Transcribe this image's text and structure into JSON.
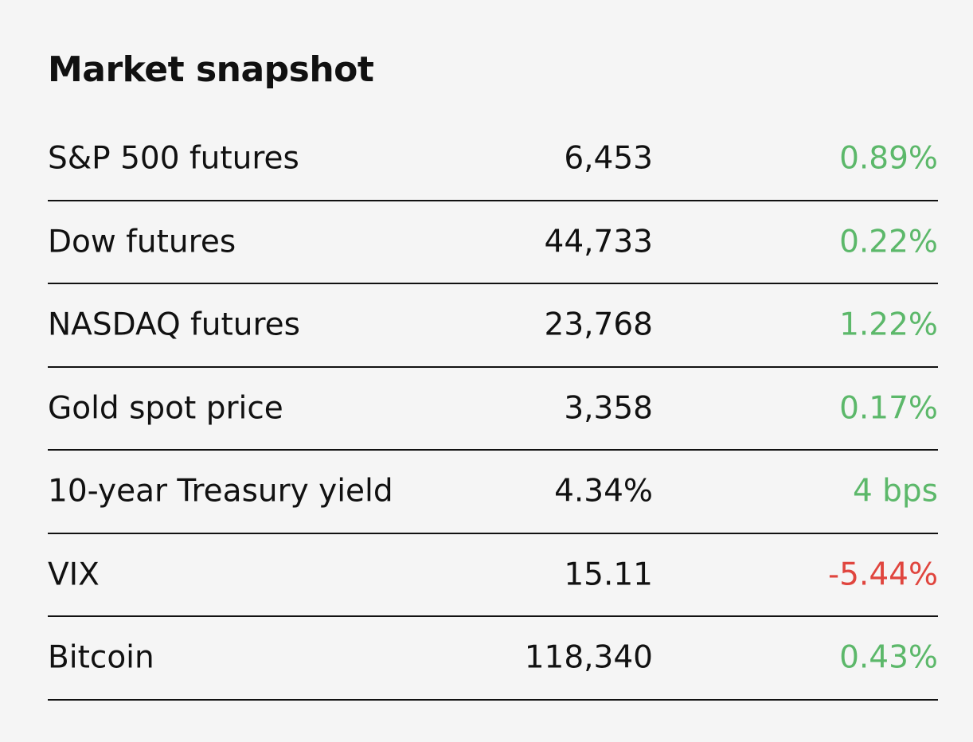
{
  "header": {
    "title": "Market snapshot"
  },
  "table": {
    "rows": [
      [
        "S&P 500 futures",
        "6,453",
        "0.89%"
      ],
      [
        "Dow futures",
        "44,733",
        "0.22%"
      ],
      [
        "NASDAQ futures",
        "23,768",
        "1.22%"
      ],
      [
        "Gold spot price",
        "3,358",
        "0.17%"
      ],
      [
        "10-year Treasury yield",
        "4.34%",
        "4 bps"
      ],
      [
        "VIX",
        "15.11",
        "-5.44%"
      ],
      [
        "Bitcoin",
        "118,340",
        "0.43%"
      ]
    ]
  }
}
